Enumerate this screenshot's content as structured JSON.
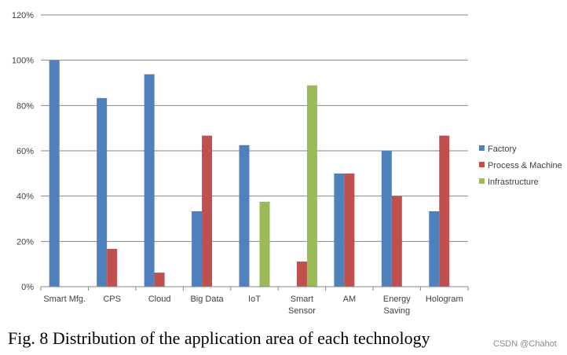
{
  "caption": "Fig. 8 Distribution of the application area of each technology",
  "watermark": "CSDN @Chahot",
  "chart_data": {
    "type": "bar",
    "title": "",
    "xlabel": "",
    "ylabel": "",
    "ylim": [
      0,
      120
    ],
    "yticks": [
      0,
      20,
      40,
      60,
      80,
      100,
      120
    ],
    "y_tick_suffix": "%",
    "grid": "horizontal",
    "legend_position": "right",
    "categories": [
      [
        "Smart Mfg."
      ],
      [
        "CPS"
      ],
      [
        "Cloud"
      ],
      [
        "Big Data"
      ],
      [
        "IoT"
      ],
      [
        "Smart",
        "Sensor"
      ],
      [
        "AM"
      ],
      [
        "Energy",
        "Saving"
      ],
      [
        "Hologram"
      ]
    ],
    "series": [
      {
        "name": "Factory",
        "color": "#4F81BD",
        "values": [
          100,
          83.3,
          93.8,
          33.3,
          62.5,
          0,
          50,
          60,
          33.3
        ]
      },
      {
        "name": "Process & Machine",
        "color": "#C0504D",
        "values": [
          0,
          16.7,
          6.2,
          66.7,
          0,
          11.1,
          50,
          40,
          66.7
        ]
      },
      {
        "name": "Infrastructure",
        "color": "#9BBB59",
        "values": [
          0,
          0,
          0,
          0,
          37.5,
          88.9,
          0,
          0,
          0
        ]
      }
    ]
  }
}
